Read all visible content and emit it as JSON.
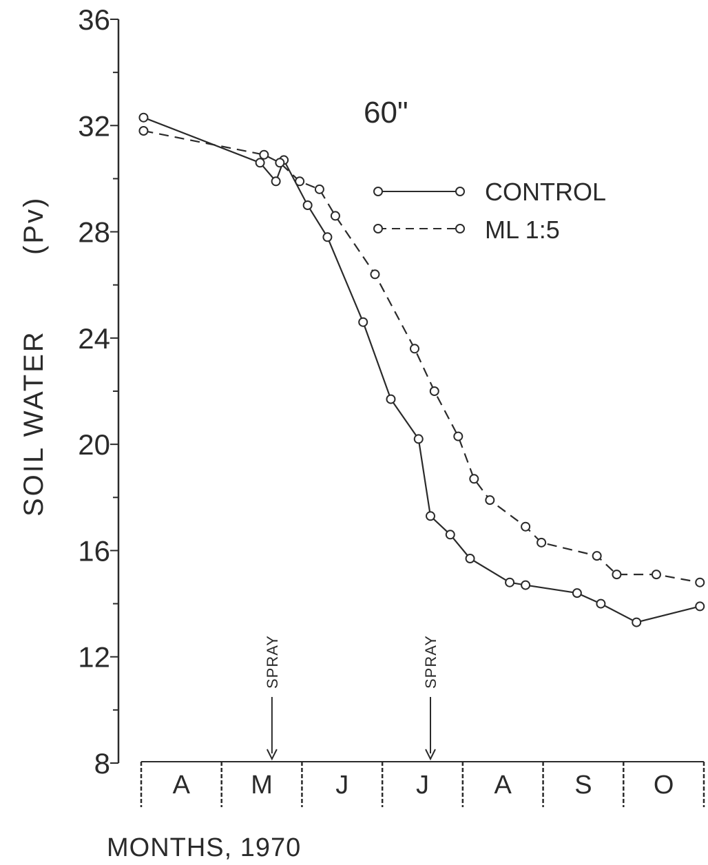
{
  "chart_data": {
    "type": "line",
    "annotation_depth": "60\"",
    "ylabel_main": "SOIL  WATER",
    "ylabel_unit": "(Pv)",
    "xlabel": "MONTHS, 1970",
    "ylim": [
      8,
      36
    ],
    "y_ticks": [
      8,
      12,
      16,
      20,
      24,
      28,
      32,
      36
    ],
    "months": [
      "A",
      "M",
      "J",
      "J",
      "A",
      "S",
      "O"
    ],
    "xlim": [
      4.0,
      11.1
    ],
    "legend_position": "top-right",
    "series": [
      {
        "name": "CONTROL",
        "style": "solid",
        "points": [
          [
            4.03,
            32.3
          ],
          [
            5.5,
            30.6
          ],
          [
            5.7,
            29.9
          ],
          [
            5.8,
            30.7
          ],
          [
            6.1,
            29.0
          ],
          [
            6.35,
            27.8
          ],
          [
            6.8,
            24.6
          ],
          [
            7.15,
            21.7
          ],
          [
            7.5,
            20.2
          ],
          [
            7.65,
            17.3
          ],
          [
            7.9,
            16.6
          ],
          [
            8.15,
            15.7
          ],
          [
            8.65,
            14.8
          ],
          [
            8.85,
            14.7
          ],
          [
            9.5,
            14.4
          ],
          [
            9.8,
            14.0
          ],
          [
            10.25,
            13.3
          ],
          [
            11.05,
            13.9
          ]
        ]
      },
      {
        "name": "ML 1:5",
        "style": "dashed",
        "points": [
          [
            4.03,
            31.8
          ],
          [
            5.55,
            30.9
          ],
          [
            5.75,
            30.6
          ],
          [
            6.0,
            29.9
          ],
          [
            6.25,
            29.6
          ],
          [
            6.45,
            28.6
          ],
          [
            6.95,
            26.4
          ],
          [
            7.45,
            23.6
          ],
          [
            7.7,
            22.0
          ],
          [
            8.0,
            20.3
          ],
          [
            8.2,
            18.7
          ],
          [
            8.4,
            17.9
          ],
          [
            8.85,
            16.9
          ],
          [
            9.05,
            16.3
          ],
          [
            9.75,
            15.8
          ],
          [
            10.0,
            15.1
          ],
          [
            10.5,
            15.1
          ],
          [
            11.05,
            14.8
          ]
        ]
      }
    ],
    "annotations": [
      {
        "label": "SPRAY",
        "x": 5.65
      },
      {
        "label": "SPRAY",
        "x": 7.65
      }
    ]
  }
}
